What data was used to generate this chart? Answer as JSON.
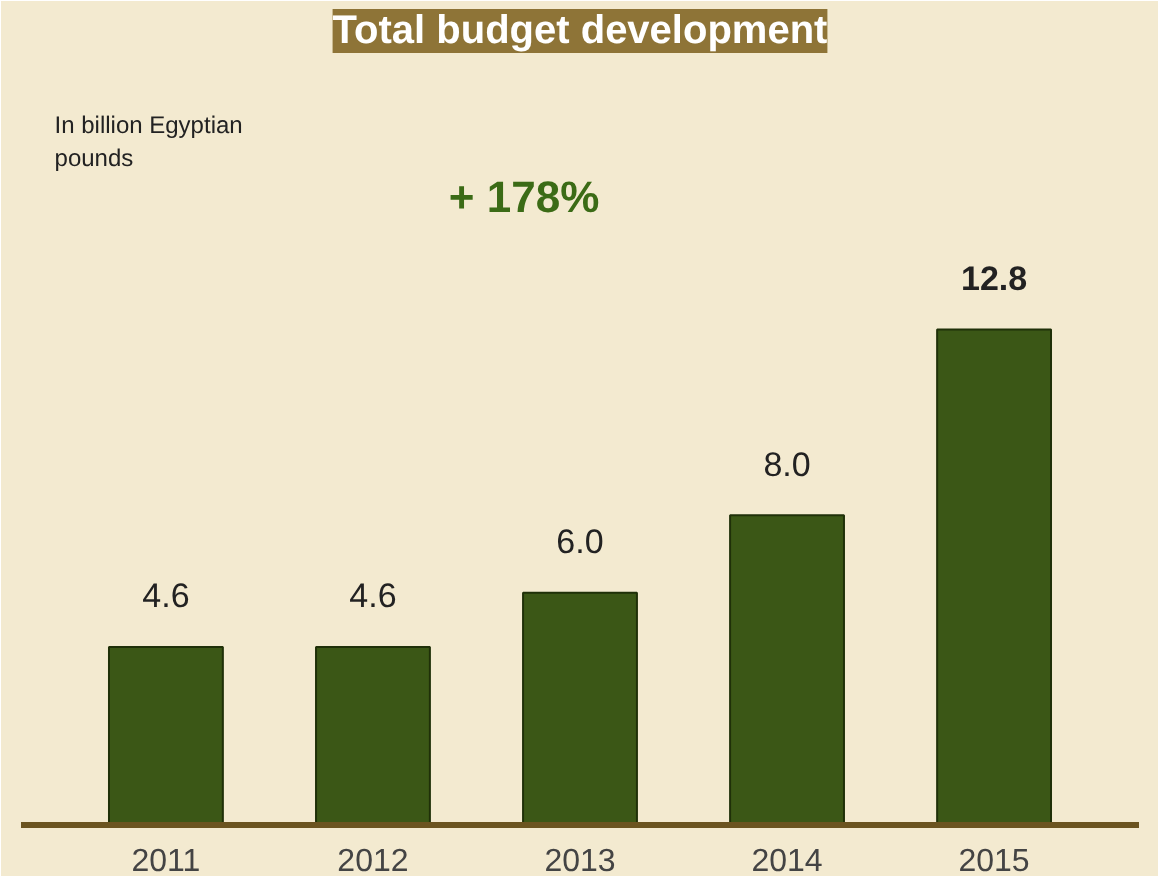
{
  "chart_data": {
    "type": "bar",
    "title": "Total budget development",
    "categories": [
      "2011",
      "2012",
      "2013",
      "2014",
      "2015"
    ],
    "values": [
      4.6,
      4.6,
      6.0,
      8.0,
      12.8
    ],
    "value_labels": [
      "4.6",
      "4.6",
      "6.0",
      "8.0",
      "12.8"
    ],
    "color": "#3b5716",
    "annotations": [
      "In billion Egyptian pounds",
      "+ 178%"
    ],
    "grid": false
  }
}
